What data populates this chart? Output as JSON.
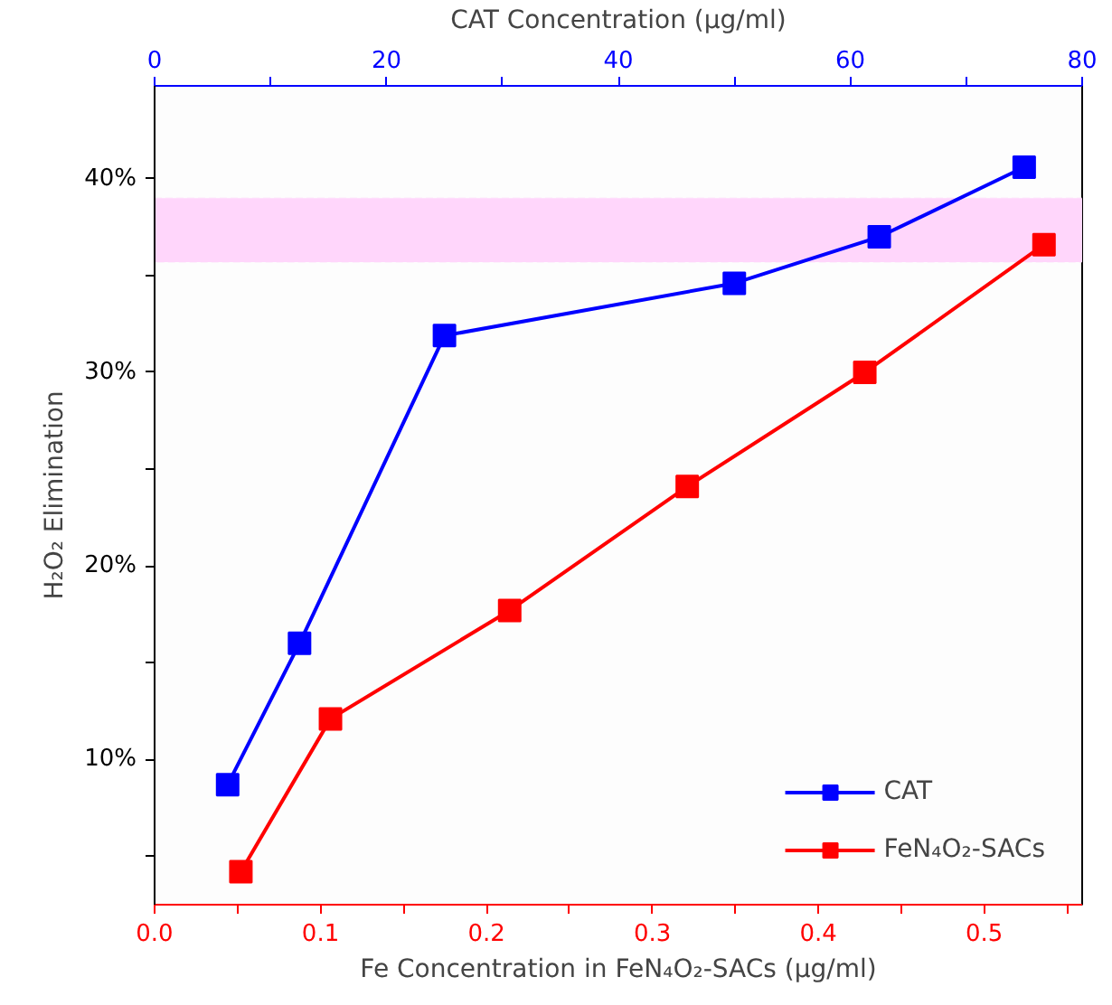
{
  "chart_data": {
    "type": "line",
    "xlabel": "Fe Concentration in FeN₄O₂-SACs (μg/ml)",
    "ylabel": "H₂O₂ Elimination",
    "x2label": "CAT Concentration (μg/ml)",
    "xlim": [
      0,
      0.559
    ],
    "xticks": [
      {
        "value": 0,
        "label": "0.0"
      },
      {
        "value": 0.05,
        "label": null
      },
      0.1,
      {
        "value": 0.15,
        "label": null
      },
      0.2,
      {
        "value": 0.25,
        "label": null
      },
      0.3,
      {
        "value": 0.35,
        "label": null
      },
      0.4,
      {
        "value": 0.45,
        "label": null
      },
      0.5,
      {
        "value": 0.55,
        "label": null
      }
    ],
    "x2lim": [
      0,
      80
    ],
    "x2ticks": [
      0,
      {
        "value": 10,
        "label": null
      },
      20,
      {
        "value": 30,
        "label": null
      },
      40,
      {
        "value": 50,
        "label": null
      },
      60,
      {
        "value": 70,
        "label": null
      },
      80
    ],
    "ylim": [
      2.5,
      44.8
    ],
    "yticks": [
      {
        "value": 5,
        "label": null
      },
      {
        "value": 10,
        "label": "10%"
      },
      {
        "value": 15,
        "label": null
      },
      {
        "value": 20,
        "label": "20%"
      },
      {
        "value": 25,
        "label": null
      },
      {
        "value": 30,
        "label": "30%"
      },
      {
        "value": 35,
        "label": null
      },
      {
        "value": 40,
        "label": "40%"
      }
    ],
    "series": [
      {
        "name": "CAT",
        "color": "#0000ff",
        "axis": "x2",
        "x": [
          6.3,
          12.5,
          25,
          50,
          62.5,
          75
        ],
        "values": [
          8.7,
          16.0,
          31.9,
          34.6,
          37.0,
          40.6
        ]
      },
      {
        "name": "FeN₄O₂-SACs",
        "color": "#ff0000",
        "x": [
          0.052,
          0.106,
          0.214,
          0.321,
          0.428,
          0.536
        ],
        "values": [
          4.2,
          12.1,
          17.7,
          24.1,
          30.0,
          36.6
        ]
      }
    ],
    "bands": [
      {
        "axis": "y",
        "from": 35.7,
        "to": 39.0,
        "color": "#ffd6fb"
      }
    ],
    "marker": "square",
    "line_style": "solid",
    "grid": false,
    "legend": "bottom right"
  }
}
